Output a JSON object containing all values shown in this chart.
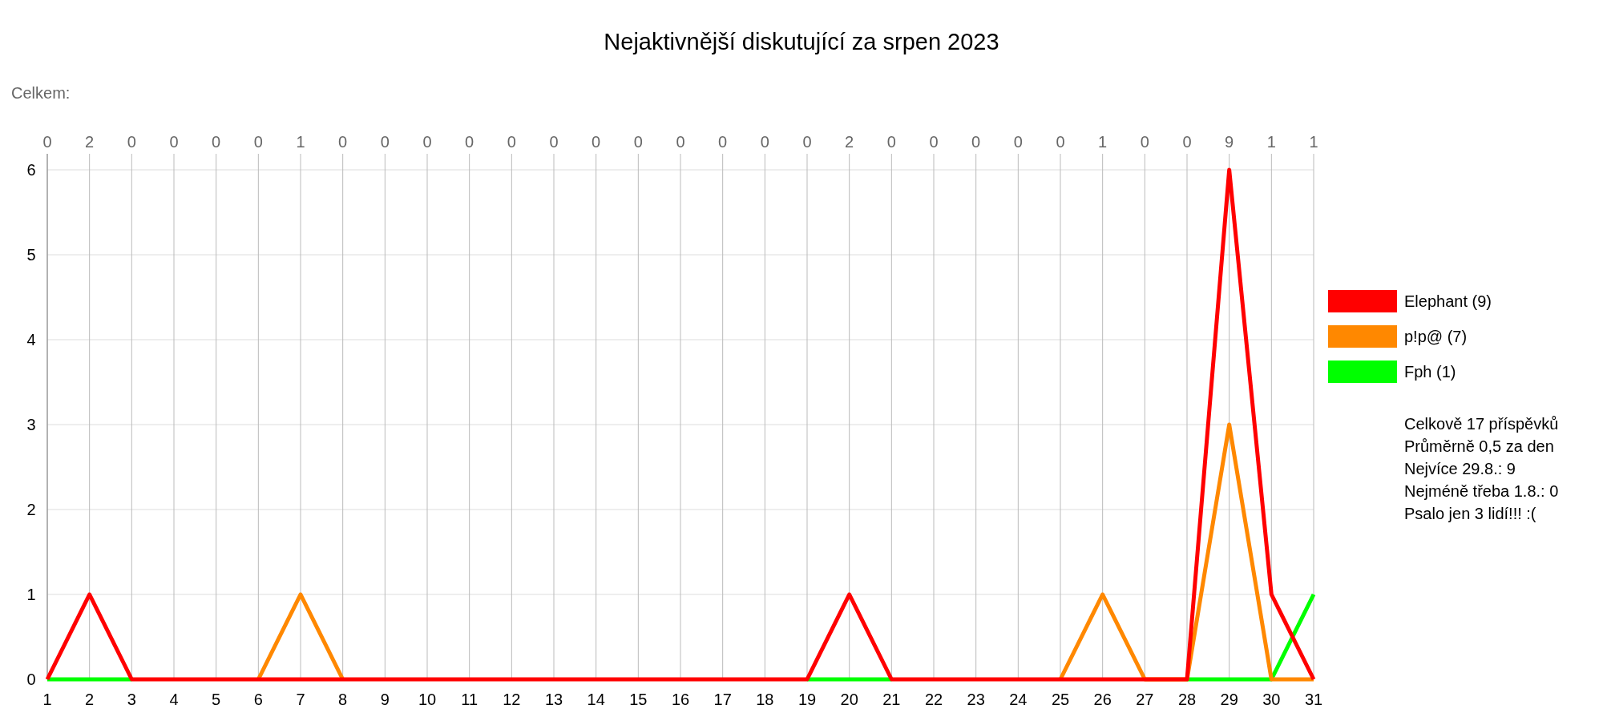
{
  "chart_data": {
    "type": "line",
    "title": "Nejaktivnější diskutující za srpen 2023",
    "x": [
      1,
      2,
      3,
      4,
      5,
      6,
      7,
      8,
      9,
      10,
      11,
      12,
      13,
      14,
      15,
      16,
      17,
      18,
      19,
      20,
      21,
      22,
      23,
      24,
      25,
      26,
      27,
      28,
      29,
      30,
      31
    ],
    "series": [
      {
        "name": "Elephant (9)",
        "color": "#ff0000",
        "values": [
          0,
          1,
          0,
          0,
          0,
          0,
          0,
          0,
          0,
          0,
          0,
          0,
          0,
          0,
          0,
          0,
          0,
          0,
          0,
          1,
          0,
          0,
          0,
          0,
          0,
          0,
          0,
          0,
          6,
          1,
          0
        ]
      },
      {
        "name": "p!p@ (7)",
        "color": "#ff8800",
        "values": [
          null,
          null,
          null,
          null,
          null,
          0,
          1,
          0,
          null,
          null,
          null,
          null,
          null,
          null,
          null,
          null,
          null,
          null,
          null,
          null,
          null,
          null,
          null,
          null,
          0,
          1,
          0,
          0,
          3,
          0,
          0
        ]
      },
      {
        "name": "Fph (1)",
        "color": "#00ff00",
        "values": [
          0,
          0,
          0,
          null,
          null,
          null,
          null,
          null,
          null,
          null,
          null,
          null,
          null,
          null,
          null,
          null,
          null,
          null,
          0,
          0,
          0,
          null,
          null,
          null,
          null,
          null,
          null,
          0,
          0,
          0,
          1
        ]
      }
    ],
    "xlim": [
      1,
      31
    ],
    "xticks": [
      1,
      2,
      3,
      4,
      5,
      6,
      7,
      8,
      9,
      10,
      11,
      12,
      13,
      14,
      15,
      16,
      17,
      18,
      19,
      20,
      21,
      22,
      23,
      24,
      25,
      26,
      27,
      28,
      29,
      30,
      31
    ],
    "ylim": [
      0,
      6
    ],
    "yticks": [
      0,
      1,
      2,
      3,
      4,
      5,
      6
    ],
    "grid": true,
    "legend": "right",
    "marker": "none",
    "line_style": "solid",
    "annotations": [
      "Celkem:",
      "Celkově 17 příspěvků",
      "Průměrně 0,5 za den",
      "Nejvíce 29.8.: 9",
      "Nejméně třeba 1.8.: 0",
      "Psalo jen 3 lidí!!! :(",
      "0",
      "2",
      "0",
      "0",
      "0",
      "0",
      "1",
      "0",
      "0",
      "0",
      "0",
      "0",
      "0",
      "0",
      "0",
      "0",
      "0",
      "0",
      "0",
      "2",
      "0",
      "0",
      "0",
      "0",
      "0",
      "1",
      "0",
      "0",
      "9",
      "1",
      "1"
    ]
  }
}
